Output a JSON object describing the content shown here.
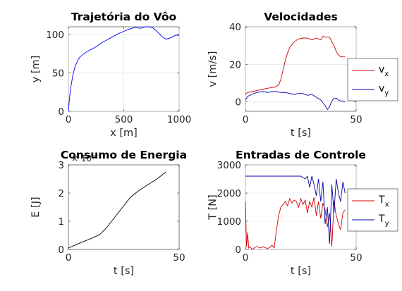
{
  "chart_data": [
    {
      "type": "line",
      "title": "Trajetória do Vôo",
      "xlabel": "x [m]",
      "ylabel": "y [m]",
      "xlim": [
        0,
        1000
      ],
      "ylim": [
        0,
        110
      ],
      "xticks": [
        0,
        500,
        1000
      ],
      "yticks": [
        0,
        50,
        100
      ],
      "grid": true,
      "series": [
        {
          "color": "#0000ff",
          "x": [
            0,
            10,
            25,
            40,
            60,
            80,
            100,
            130,
            160,
            200,
            250,
            300,
            350,
            400,
            450,
            500,
            550,
            600,
            650,
            700,
            720,
            760,
            800,
            840,
            880,
            910,
            940,
            970,
            1000
          ],
          "y": [
            0,
            18,
            34,
            47,
            58,
            65,
            70,
            74,
            77,
            80,
            84,
            89,
            93,
            97,
            101,
            104,
            107,
            109,
            108,
            110,
            110,
            109,
            104,
            98,
            94,
            95,
            97,
            99,
            99
          ]
        }
      ]
    },
    {
      "type": "line",
      "title": "Velocidades",
      "xlabel": "t [s]",
      "ylabel": "v [m/s]",
      "xlim": [
        0,
        50
      ],
      "ylim": [
        -5,
        40
      ],
      "xticks": [
        0,
        50
      ],
      "yticks": [
        0,
        20,
        40
      ],
      "grid": true,
      "legend": "outside-right",
      "series": [
        {
          "name": "v",
          "sub": "x",
          "color": "#cc0000",
          "x": [
            0,
            1,
            3,
            5,
            8,
            11,
            13,
            15,
            16,
            17,
            18,
            19,
            20,
            22,
            24,
            26,
            28,
            30,
            32,
            34,
            35,
            36,
            38,
            39,
            40,
            41,
            42,
            43,
            44,
            45
          ],
          "y": [
            4,
            5,
            5.5,
            6,
            6.8,
            7.5,
            7.8,
            9,
            12,
            17,
            22,
            26,
            29,
            32,
            33.5,
            34,
            34,
            33,
            34,
            33,
            35,
            34.5,
            34.5,
            32,
            30,
            27,
            25,
            24,
            24,
            24
          ]
        },
        {
          "name": "v",
          "sub": "y",
          "color": "#0000aa",
          "x": [
            0,
            1,
            3,
            5,
            8,
            10,
            12,
            14,
            16,
            18,
            20,
            22,
            24,
            26,
            28,
            30,
            32,
            34,
            35,
            36,
            37,
            38,
            39,
            40,
            41,
            42,
            43,
            44,
            45
          ],
          "y": [
            1,
            3,
            4,
            5,
            5.5,
            5,
            5.5,
            5.5,
            5,
            5,
            4.5,
            4,
            4.5,
            4.5,
            3.5,
            4,
            2.5,
            1,
            -0.5,
            -2,
            -4,
            -2.5,
            0.5,
            2,
            2,
            1,
            0.5,
            0.5,
            0
          ]
        }
      ]
    },
    {
      "type": "line",
      "title": "Consumo de Energia",
      "xlabel": "t [s]",
      "ylabel": "E [J]",
      "xlim": [
        0,
        50
      ],
      "ylim": [
        0,
        3000000
      ],
      "xticks": [
        0,
        50
      ],
      "yticks": [
        0,
        1000000,
        2000000,
        3000000
      ],
      "yticklabels": [
        "0",
        "1",
        "2",
        "3"
      ],
      "yexponent": "× 10⁶",
      "grid": false,
      "series": [
        {
          "color": "#000000",
          "x": [
            0,
            5,
            10,
            14,
            17,
            20,
            24,
            28,
            32,
            36,
            40,
            44
          ],
          "y": [
            50000,
            220000,
            380000,
            520000,
            750000,
            1050000,
            1450000,
            1850000,
            2100000,
            2300000,
            2500000,
            2750000
          ]
        }
      ]
    },
    {
      "type": "line",
      "title": "Entradas de Controle",
      "xlabel": "t [s]",
      "ylabel": "T [N]",
      "xlim": [
        0,
        50
      ],
      "ylim": [
        0,
        3000
      ],
      "xticks": [
        0,
        50
      ],
      "yticks": [
        0,
        1000,
        2000,
        3000
      ],
      "grid": true,
      "legend": "outside-right",
      "series": [
        {
          "name": "T",
          "sub": "x",
          "color": "#cc0000",
          "x": [
            0,
            0.5,
            1,
            1.5,
            2,
            3,
            4,
            5,
            6,
            7,
            8,
            9,
            10,
            11,
            12,
            13,
            14,
            15,
            16,
            17,
            18,
            19,
            20,
            21,
            22,
            23,
            24,
            25,
            26,
            27,
            28,
            29,
            30,
            31,
            32,
            33,
            34,
            35,
            36,
            37,
            38,
            39,
            40,
            41,
            42,
            43,
            44,
            45
          ],
          "y": [
            1700,
            100,
            600,
            50,
            100,
            0,
            50,
            100,
            80,
            50,
            100,
            60,
            30,
            80,
            150,
            50,
            700,
            1200,
            1500,
            1600,
            1700,
            1550,
            1800,
            1650,
            1750,
            1700,
            1500,
            1800,
            1600,
            1750,
            1300,
            1700,
            1500,
            1850,
            1200,
            1700,
            1100,
            1650,
            1400,
            800,
            1300,
            100,
            1700,
            1200,
            900,
            700,
            1300,
            1400
          ]
        },
        {
          "name": "T",
          "sub": "y",
          "color": "#0000aa",
          "x": [
            0,
            5,
            10,
            15,
            20,
            25,
            26,
            27,
            28,
            29,
            30,
            31,
            32,
            33,
            34,
            35,
            36,
            37,
            38,
            39,
            40,
            41,
            42,
            43,
            44,
            45
          ],
          "y": [
            2600,
            2600,
            2600,
            2600,
            2600,
            2600,
            2550,
            2500,
            2600,
            2200,
            2600,
            2300,
            1900,
            2500,
            1700,
            2400,
            900,
            1500,
            200,
            2300,
            1300,
            2500,
            2000,
            1700,
            2400,
            2000
          ]
        }
      ]
    }
  ]
}
